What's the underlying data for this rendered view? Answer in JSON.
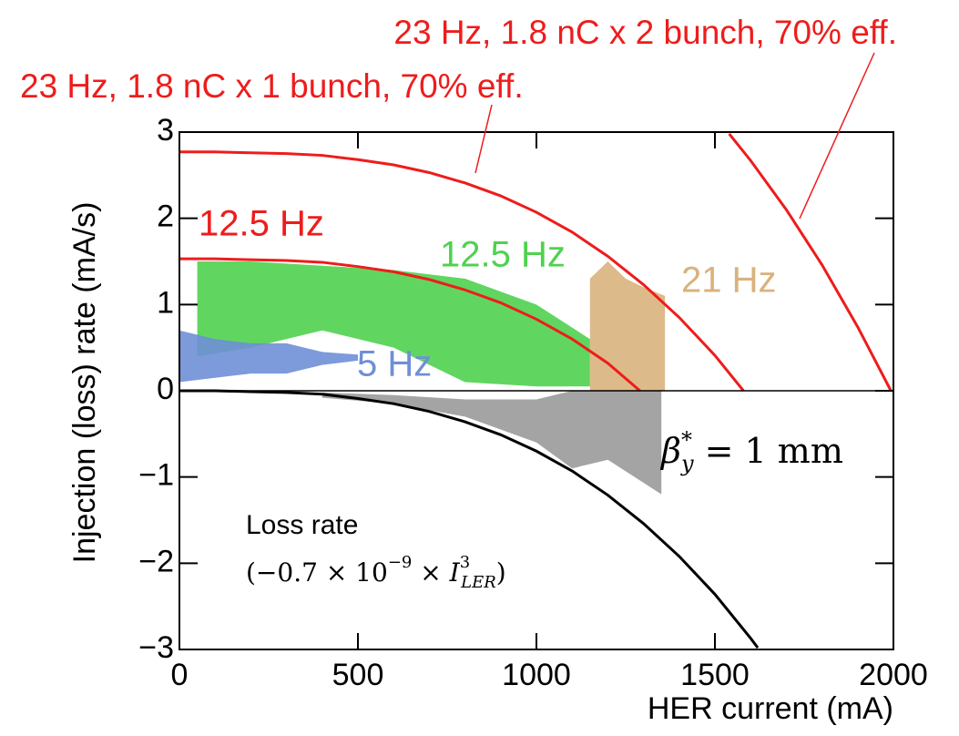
{
  "chart_data": {
    "type": "line",
    "x_label": "HER current (mA)",
    "y_label": "Injection (loss) rate (mA/s)",
    "xlim": [
      0,
      2000
    ],
    "ylim": [
      -3,
      3
    ],
    "xticks": [
      0,
      500,
      1000,
      1500,
      2000
    ],
    "yticks": [
      {
        "value": -3,
        "label": "−3"
      },
      {
        "value": -2,
        "label": "−2"
      },
      {
        "value": -1,
        "label": "−1"
      },
      0,
      1,
      2,
      3
    ],
    "series": [
      {
        "color": "#ee1c1c",
        "x": [
          0,
          100,
          200,
          300,
          400,
          500,
          600,
          700,
          800,
          900,
          1000,
          1100,
          1200,
          1300,
          1400,
          1500,
          1580
        ],
        "values": [
          2.77,
          2.77,
          2.76,
          2.75,
          2.73,
          2.68,
          2.62,
          2.53,
          2.41,
          2.26,
          2.07,
          1.84,
          1.56,
          1.23,
          0.85,
          0.41,
          0
        ]
      },
      {
        "color": "#ee1c1c",
        "x": [
          1540,
          1600,
          1700,
          1800,
          1900,
          1993
        ],
        "values": [
          2.98,
          2.67,
          2.1,
          1.46,
          0.74,
          0
        ]
      },
      {
        "color": "#ee1c1c",
        "x": [
          0,
          100,
          200,
          300,
          400,
          500,
          600,
          700,
          800,
          900,
          1000,
          1100,
          1200,
          1290
        ],
        "values": [
          1.53,
          1.53,
          1.52,
          1.51,
          1.49,
          1.44,
          1.38,
          1.29,
          1.17,
          1.02,
          0.83,
          0.6,
          0.32,
          0
        ]
      },
      {
        "color": "#000000",
        "x": [
          0,
          100,
          200,
          300,
          400,
          500,
          600,
          700,
          800,
          900,
          1000,
          1100,
          1200,
          1300,
          1400,
          1500,
          1600,
          1620
        ],
        "values": [
          0,
          0,
          -0.01,
          -0.02,
          -0.04,
          -0.09,
          -0.15,
          -0.24,
          -0.36,
          -0.51,
          -0.7,
          -0.93,
          -1.21,
          -1.54,
          -1.92,
          -2.36,
          -2.87,
          -2.98
        ]
      }
    ],
    "bands": [
      {
        "color": "#9a9a9a",
        "x": [
          400,
          600,
          800,
          1000,
          1100,
          1200,
          1350
        ],
        "low": [
          -0.08,
          -0.15,
          -0.3,
          -0.6,
          -0.9,
          -0.8,
          -1.2
        ],
        "high": [
          -0.02,
          -0.05,
          -0.1,
          -0.1,
          0,
          0,
          0
        ]
      },
      {
        "color": "#d9b27c",
        "x": [
          1150,
          1200,
          1250,
          1300,
          1360
        ],
        "low": [
          0,
          0,
          0,
          0,
          0
        ],
        "high": [
          1.3,
          1.5,
          1.3,
          1.2,
          1.1
        ]
      },
      {
        "color": "#4fd24f",
        "x": [
          50,
          200,
          400,
          600,
          800,
          1000,
          1150
        ],
        "low": [
          0.4,
          0.5,
          0.7,
          0.5,
          0.1,
          0.05,
          0.05
        ],
        "high": [
          1.5,
          1.5,
          1.45,
          1.4,
          1.3,
          1.0,
          0.6
        ]
      },
      {
        "color": "#6f8fd6",
        "x": [
          0,
          100,
          200,
          300,
          400,
          500
        ],
        "low": [
          0.1,
          0.15,
          0.2,
          0.2,
          0.3,
          0.35
        ],
        "high": [
          0.7,
          0.6,
          0.55,
          0.55,
          0.45,
          0.42
        ]
      }
    ],
    "annotations": {
      "two_bunch": "23 Hz, 1.8 nC x 2 bunch, 70% eff.",
      "one_bunch": "23 Hz, 1.8 nC x 1 bunch, 70% eff.",
      "red_12_5": "12.5 Hz",
      "green_12_5": "12.5 Hz",
      "tan_21": "21 Hz",
      "blue_5": "5 Hz",
      "beta": [
        "β",
        "*",
        "y",
        " = 1 mm"
      ],
      "loss_title": "Loss rate",
      "loss_formula": [
        "(−0.7 × 10",
        "−9",
        " × ",
        "I",
        "3",
        "LER",
        ")"
      ]
    }
  }
}
